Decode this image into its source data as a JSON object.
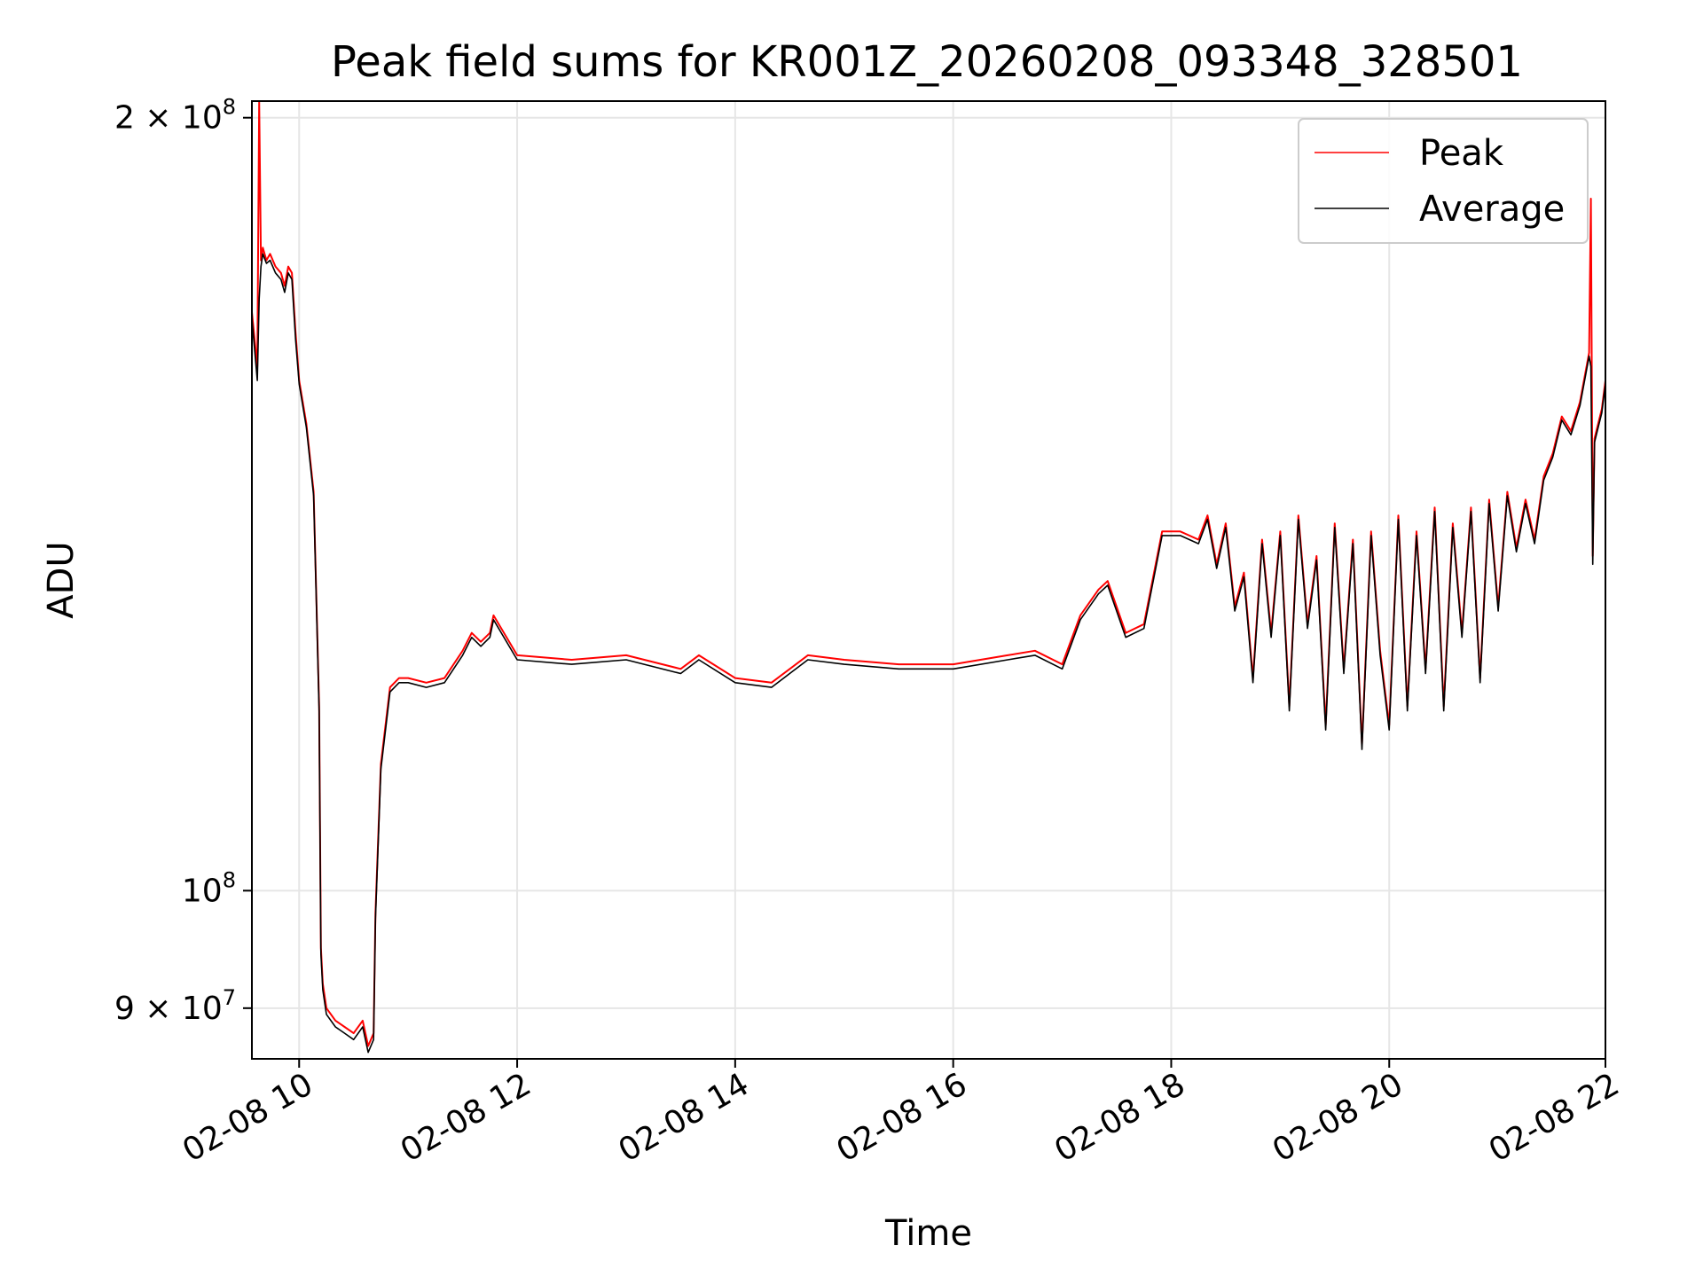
{
  "chart_data": {
    "type": "line",
    "title": "Peak field sums for KR001Z_20260208_093348_328501",
    "xlabel": "Time",
    "ylabel": "ADU",
    "x_ticks": [
      "02-08 10",
      "02-08 12",
      "02-08 14",
      "02-08 16",
      "02-08 18",
      "02-08 20",
      "02-08 22"
    ],
    "y_scale": "log",
    "y_ticks": [
      {
        "value": 90000000,
        "mant": "9",
        "exp": "7"
      },
      {
        "value": 100000000,
        "mant": "",
        "exp": "8"
      },
      {
        "value": 200000000,
        "mant": "2",
        "exp": "8"
      }
    ],
    "xlim": [
      "2026-02-08T09:34",
      "2026-02-08T21:59"
    ],
    "ylim": [
      86000000,
      203000000
    ],
    "grid": true,
    "legend_position": "top-right",
    "series": [
      {
        "name": "Peak",
        "color": "#ff0000",
        "x": [
          "2026-02-08T09:34",
          "2026-02-08T09:37",
          "2026-02-08T09:38",
          "2026-02-08T09:39",
          "2026-02-08T09:40",
          "2026-02-08T09:42",
          "2026-02-08T09:44",
          "2026-02-08T09:47",
          "2026-02-08T09:50",
          "2026-02-08T09:52",
          "2026-02-08T09:54",
          "2026-02-08T09:56",
          "2026-02-08T09:58",
          "2026-02-08T10:00",
          "2026-02-08T10:04",
          "2026-02-08T10:08",
          "2026-02-08T10:11",
          "2026-02-08T10:12",
          "2026-02-08T10:13",
          "2026-02-08T10:15",
          "2026-02-08T10:20",
          "2026-02-08T10:25",
          "2026-02-08T10:30",
          "2026-02-08T10:35",
          "2026-02-08T10:38",
          "2026-02-08T10:41",
          "2026-02-08T10:42",
          "2026-02-08T10:45",
          "2026-02-08T10:50",
          "2026-02-08T10:55",
          "2026-02-08T11:00",
          "2026-02-08T11:10",
          "2026-02-08T11:20",
          "2026-02-08T11:30",
          "2026-02-08T11:35",
          "2026-02-08T11:40",
          "2026-02-08T11:45",
          "2026-02-08T11:47",
          "2026-02-08T12:00",
          "2026-02-08T12:30",
          "2026-02-08T13:00",
          "2026-02-08T13:30",
          "2026-02-08T13:40",
          "2026-02-08T14:00",
          "2026-02-08T14:20",
          "2026-02-08T14:40",
          "2026-02-08T15:00",
          "2026-02-08T15:30",
          "2026-02-08T16:00",
          "2026-02-08T16:30",
          "2026-02-08T16:45",
          "2026-02-08T17:00",
          "2026-02-08T17:10",
          "2026-02-08T17:20",
          "2026-02-08T17:25",
          "2026-02-08T17:35",
          "2026-02-08T17:45",
          "2026-02-08T17:55",
          "2026-02-08T18:05",
          "2026-02-08T18:15",
          "2026-02-08T18:20",
          "2026-02-08T18:25",
          "2026-02-08T18:30",
          "2026-02-08T18:35",
          "2026-02-08T18:40",
          "2026-02-08T18:45",
          "2026-02-08T18:50",
          "2026-02-08T18:55",
          "2026-02-08T19:00",
          "2026-02-08T19:05",
          "2026-02-08T19:10",
          "2026-02-08T19:15",
          "2026-02-08T19:20",
          "2026-02-08T19:25",
          "2026-02-08T19:30",
          "2026-02-08T19:35",
          "2026-02-08T19:40",
          "2026-02-08T19:45",
          "2026-02-08T19:50",
          "2026-02-08T19:55",
          "2026-02-08T20:00",
          "2026-02-08T20:05",
          "2026-02-08T20:10",
          "2026-02-08T20:15",
          "2026-02-08T20:20",
          "2026-02-08T20:25",
          "2026-02-08T20:30",
          "2026-02-08T20:35",
          "2026-02-08T20:40",
          "2026-02-08T20:45",
          "2026-02-08T20:50",
          "2026-02-08T20:55",
          "2026-02-08T21:00",
          "2026-02-08T21:05",
          "2026-02-08T21:10",
          "2026-02-08T21:15",
          "2026-02-08T21:20",
          "2026-02-08T21:25",
          "2026-02-08T21:30",
          "2026-02-08T21:35",
          "2026-02-08T21:40",
          "2026-02-08T21:45",
          "2026-02-08T21:50",
          "2026-02-08T21:51",
          "2026-02-08T21:52",
          "2026-02-08T21:53",
          "2026-02-08T21:55",
          "2026-02-08T21:57",
          "2026-02-08T21:59"
        ],
        "values": [
          168000000,
          160000000,
          203000000,
          176000000,
          178000000,
          176000000,
          177000000,
          175000000,
          174000000,
          172000000,
          175000000,
          174000000,
          165000000,
          158000000,
          152000000,
          143000000,
          118000000,
          95000000,
          92000000,
          90000000,
          89000000,
          88500000,
          88000000,
          89000000,
          87000000,
          88000000,
          98000000,
          112000000,
          120000000,
          121000000,
          121000000,
          120500000,
          121000000,
          124000000,
          126000000,
          125000000,
          126000000,
          128000000,
          123500000,
          123000000,
          123500000,
          122000000,
          123500000,
          121000000,
          120500000,
          123500000,
          123000000,
          122500000,
          122500000,
          123500000,
          124000000,
          122500000,
          128000000,
          131000000,
          132000000,
          126000000,
          127000000,
          138000000,
          138000000,
          137000000,
          140000000,
          134000000,
          139000000,
          129000000,
          133000000,
          121000000,
          137000000,
          126000000,
          138000000,
          118000000,
          140000000,
          127000000,
          135000000,
          116000000,
          139000000,
          122000000,
          137000000,
          114000000,
          138000000,
          124000000,
          116000000,
          140000000,
          118000000,
          138000000,
          122000000,
          141000000,
          118000000,
          139000000,
          126000000,
          141000000,
          121000000,
          142000000,
          129000000,
          143000000,
          136000000,
          142000000,
          137000000,
          145000000,
          148000000,
          153000000,
          151000000,
          155000000,
          162000000,
          186000000,
          135000000,
          150000000,
          152000000,
          154000000,
          158000000
        ]
      },
      {
        "name": "Average",
        "color": "#000000",
        "x": [
          "2026-02-08T09:34",
          "2026-02-08T09:37",
          "2026-02-08T09:38",
          "2026-02-08T09:39",
          "2026-02-08T09:40",
          "2026-02-08T09:42",
          "2026-02-08T09:44",
          "2026-02-08T09:47",
          "2026-02-08T09:50",
          "2026-02-08T09:52",
          "2026-02-08T09:54",
          "2026-02-08T09:56",
          "2026-02-08T09:58",
          "2026-02-08T10:00",
          "2026-02-08T10:04",
          "2026-02-08T10:08",
          "2026-02-08T10:11",
          "2026-02-08T10:12",
          "2026-02-08T10:13",
          "2026-02-08T10:15",
          "2026-02-08T10:20",
          "2026-02-08T10:25",
          "2026-02-08T10:30",
          "2026-02-08T10:35",
          "2026-02-08T10:38",
          "2026-02-08T10:41",
          "2026-02-08T10:42",
          "2026-02-08T10:45",
          "2026-02-08T10:50",
          "2026-02-08T10:55",
          "2026-02-08T11:00",
          "2026-02-08T11:10",
          "2026-02-08T11:20",
          "2026-02-08T11:30",
          "2026-02-08T11:35",
          "2026-02-08T11:40",
          "2026-02-08T11:45",
          "2026-02-08T11:47",
          "2026-02-08T12:00",
          "2026-02-08T12:30",
          "2026-02-08T13:00",
          "2026-02-08T13:30",
          "2026-02-08T13:40",
          "2026-02-08T14:00",
          "2026-02-08T14:20",
          "2026-02-08T14:40",
          "2026-02-08T15:00",
          "2026-02-08T15:30",
          "2026-02-08T16:00",
          "2026-02-08T16:30",
          "2026-02-08T16:45",
          "2026-02-08T17:00",
          "2026-02-08T17:10",
          "2026-02-08T17:20",
          "2026-02-08T17:25",
          "2026-02-08T17:35",
          "2026-02-08T17:45",
          "2026-02-08T17:55",
          "2026-02-08T18:05",
          "2026-02-08T18:15",
          "2026-02-08T18:20",
          "2026-02-08T18:25",
          "2026-02-08T18:30",
          "2026-02-08T18:35",
          "2026-02-08T18:40",
          "2026-02-08T18:45",
          "2026-02-08T18:50",
          "2026-02-08T18:55",
          "2026-02-08T19:00",
          "2026-02-08T19:05",
          "2026-02-08T19:10",
          "2026-02-08T19:15",
          "2026-02-08T19:20",
          "2026-02-08T19:25",
          "2026-02-08T19:30",
          "2026-02-08T19:35",
          "2026-02-08T19:40",
          "2026-02-08T19:45",
          "2026-02-08T19:50",
          "2026-02-08T19:55",
          "2026-02-08T20:00",
          "2026-02-08T20:05",
          "2026-02-08T20:10",
          "2026-02-08T20:15",
          "2026-02-08T20:20",
          "2026-02-08T20:25",
          "2026-02-08T20:30",
          "2026-02-08T20:35",
          "2026-02-08T20:40",
          "2026-02-08T20:45",
          "2026-02-08T20:50",
          "2026-02-08T20:55",
          "2026-02-08T21:00",
          "2026-02-08T21:05",
          "2026-02-08T21:10",
          "2026-02-08T21:15",
          "2026-02-08T21:20",
          "2026-02-08T21:25",
          "2026-02-08T21:30",
          "2026-02-08T21:35",
          "2026-02-08T21:40",
          "2026-02-08T21:45",
          "2026-02-08T21:50",
          "2026-02-08T21:51",
          "2026-02-08T21:52",
          "2026-02-08T21:53",
          "2026-02-08T21:55",
          "2026-02-08T21:57",
          "2026-02-08T21:59"
        ],
        "values": [
          167000000,
          158000000,
          170000000,
          175000000,
          177000000,
          175500000,
          176000000,
          174000000,
          173000000,
          171000000,
          174000000,
          173000000,
          164000000,
          157500000,
          151500000,
          142500000,
          117500000,
          94500000,
          91500000,
          89500000,
          88500000,
          88000000,
          87500000,
          88500000,
          86500000,
          87500000,
          97500000,
          111500000,
          119500000,
          120500000,
          120500000,
          120000000,
          120500000,
          123500000,
          125500000,
          124500000,
          125500000,
          127500000,
          123000000,
          122500000,
          123000000,
          121500000,
          123000000,
          120500000,
          120000000,
          123000000,
          122500000,
          122000000,
          122000000,
          123000000,
          123500000,
          122000000,
          127500000,
          130500000,
          131500000,
          125500000,
          126500000,
          137500000,
          137500000,
          136500000,
          139500000,
          133500000,
          138500000,
          128500000,
          132500000,
          120500000,
          136500000,
          125500000,
          137500000,
          117500000,
          139500000,
          126500000,
          134500000,
          115500000,
          138500000,
          121500000,
          136500000,
          113500000,
          137500000,
          123500000,
          115500000,
          139500000,
          117500000,
          137500000,
          121500000,
          140500000,
          117500000,
          138500000,
          125500000,
          140500000,
          120500000,
          141500000,
          128500000,
          142500000,
          135500000,
          141500000,
          136500000,
          144500000,
          147500000,
          152500000,
          150500000,
          154500000,
          161500000,
          160000000,
          134000000,
          149500000,
          151500000,
          153500000,
          157500000
        ]
      }
    ]
  }
}
